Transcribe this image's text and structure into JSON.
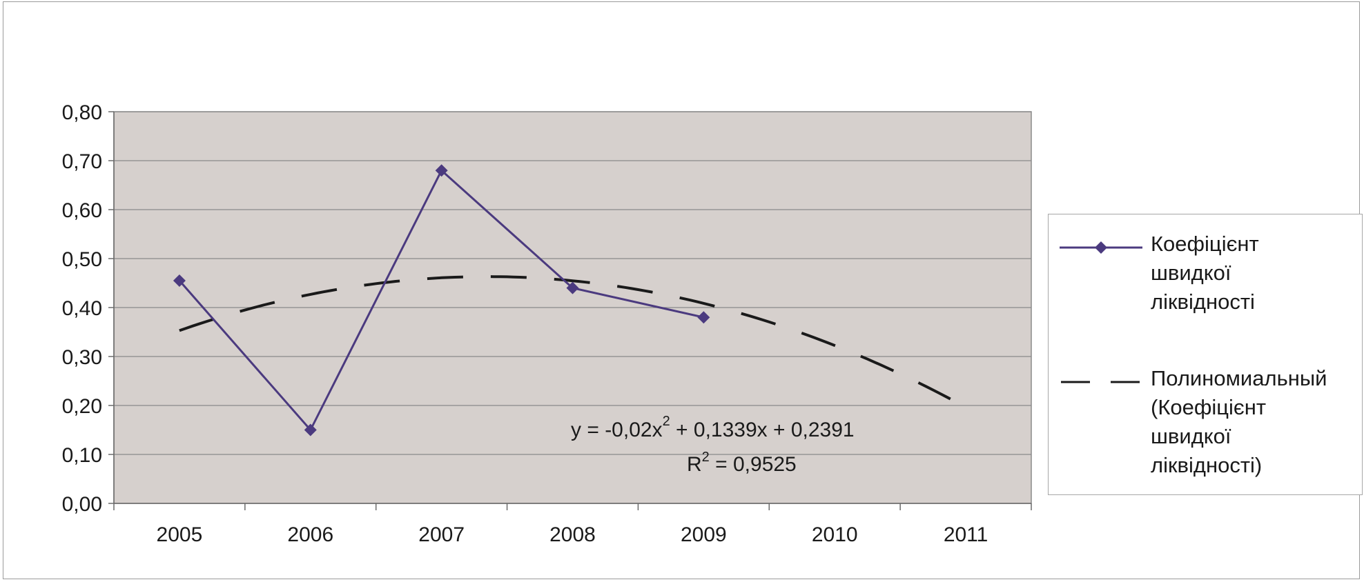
{
  "chart_data": {
    "type": "line",
    "title": "",
    "xlabel": "",
    "ylabel": "",
    "categories": [
      "2005",
      "2006",
      "2007",
      "2008",
      "2009",
      "2010",
      "2011"
    ],
    "ylim": [
      0,
      0.8
    ],
    "yticks": [
      "0,00",
      "0,10",
      "0,20",
      "0,30",
      "0,40",
      "0,50",
      "0,60",
      "0,70",
      "0,80"
    ],
    "grid": true,
    "legend_position": "right",
    "plot_background": "#d6d0cd",
    "series": [
      {
        "name": "Коефіцієнт швидкої ліквідності",
        "values": [
          0.455,
          0.15,
          0.68,
          0.44,
          0.38,
          null,
          null
        ],
        "color": "#4b3a7f",
        "marker": "diamond"
      },
      {
        "name": "Полиномиальный (Коефіцієнт швидкої ліквідності)",
        "type": "polynomial-trendline",
        "coefficients": {
          "a": -0.02,
          "b": 0.1339,
          "c": 0.2391
        },
        "color": "#1a1a1a",
        "dash": "long-dash"
      }
    ],
    "annotations": {
      "equation_prefix": "y = -0,02x",
      "equation_exp": "2",
      "equation_suffix": " + 0,1339x + 0,2391",
      "r2_prefix": "R",
      "r2_exp": "2",
      "r2_suffix": " = 0,9525"
    }
  },
  "legend": {
    "entries": [
      {
        "label": "Коефіцієнт\nшвидкої\nліквідності",
        "icon": "line-diamond-marker"
      },
      {
        "label": "Полиномиальный\n(Коефіцієнт\nшвидкої\nліквідності)",
        "icon": "dashed-line"
      }
    ]
  }
}
